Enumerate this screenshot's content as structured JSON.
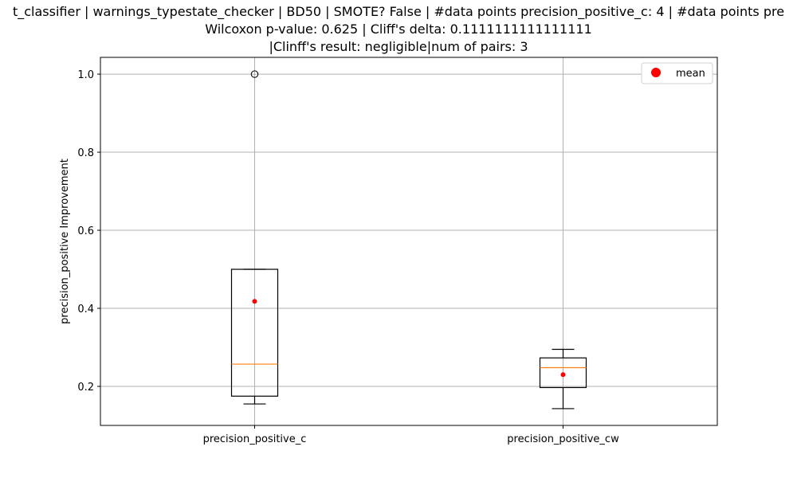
{
  "chart_data": {
    "type": "box",
    "title_lines": [
      "t_classifier | warnings_typestate_checker | BD50 | SMOTE? False | #data points precision_positive_c: 4 | #data points pre",
      "Wilcoxon p-value: 0.625 | Cliff's delta: 0.1111111111111111",
      "|Clinff's result: negligible|num of pairs: 3"
    ],
    "xlabel": "",
    "ylabel": "precision_positive Improvement",
    "categories": [
      "precision_positive_c",
      "precision_positive_cw"
    ],
    "ylim": [
      0.1,
      1.043
    ],
    "yticks": [
      0.2,
      0.4,
      0.6,
      0.8,
      1.0
    ],
    "ytick_labels": [
      "0.2",
      "0.4",
      "0.6",
      "0.8",
      "1.0"
    ],
    "grid": true,
    "legend": {
      "position": "top-right",
      "entries": [
        {
          "label": "mean",
          "color": "#ff0000",
          "marker": "circle"
        }
      ]
    },
    "boxes": [
      {
        "category": "precision_positive_c",
        "whisker_low": 0.155,
        "q1": 0.175,
        "median": 0.257,
        "q3": 0.5,
        "whisker_high": 0.5,
        "mean": 0.418,
        "outliers": [
          1.0
        ]
      },
      {
        "category": "precision_positive_cw",
        "whisker_low": 0.143,
        "q1": 0.197,
        "median": 0.248,
        "q3": 0.273,
        "whisker_high": 0.295,
        "mean": 0.23,
        "outliers": []
      }
    ],
    "colors": {
      "box": "#000000",
      "median": "#ff7f0e",
      "mean": "#ff0000",
      "grid": "#b0b0b0"
    }
  }
}
